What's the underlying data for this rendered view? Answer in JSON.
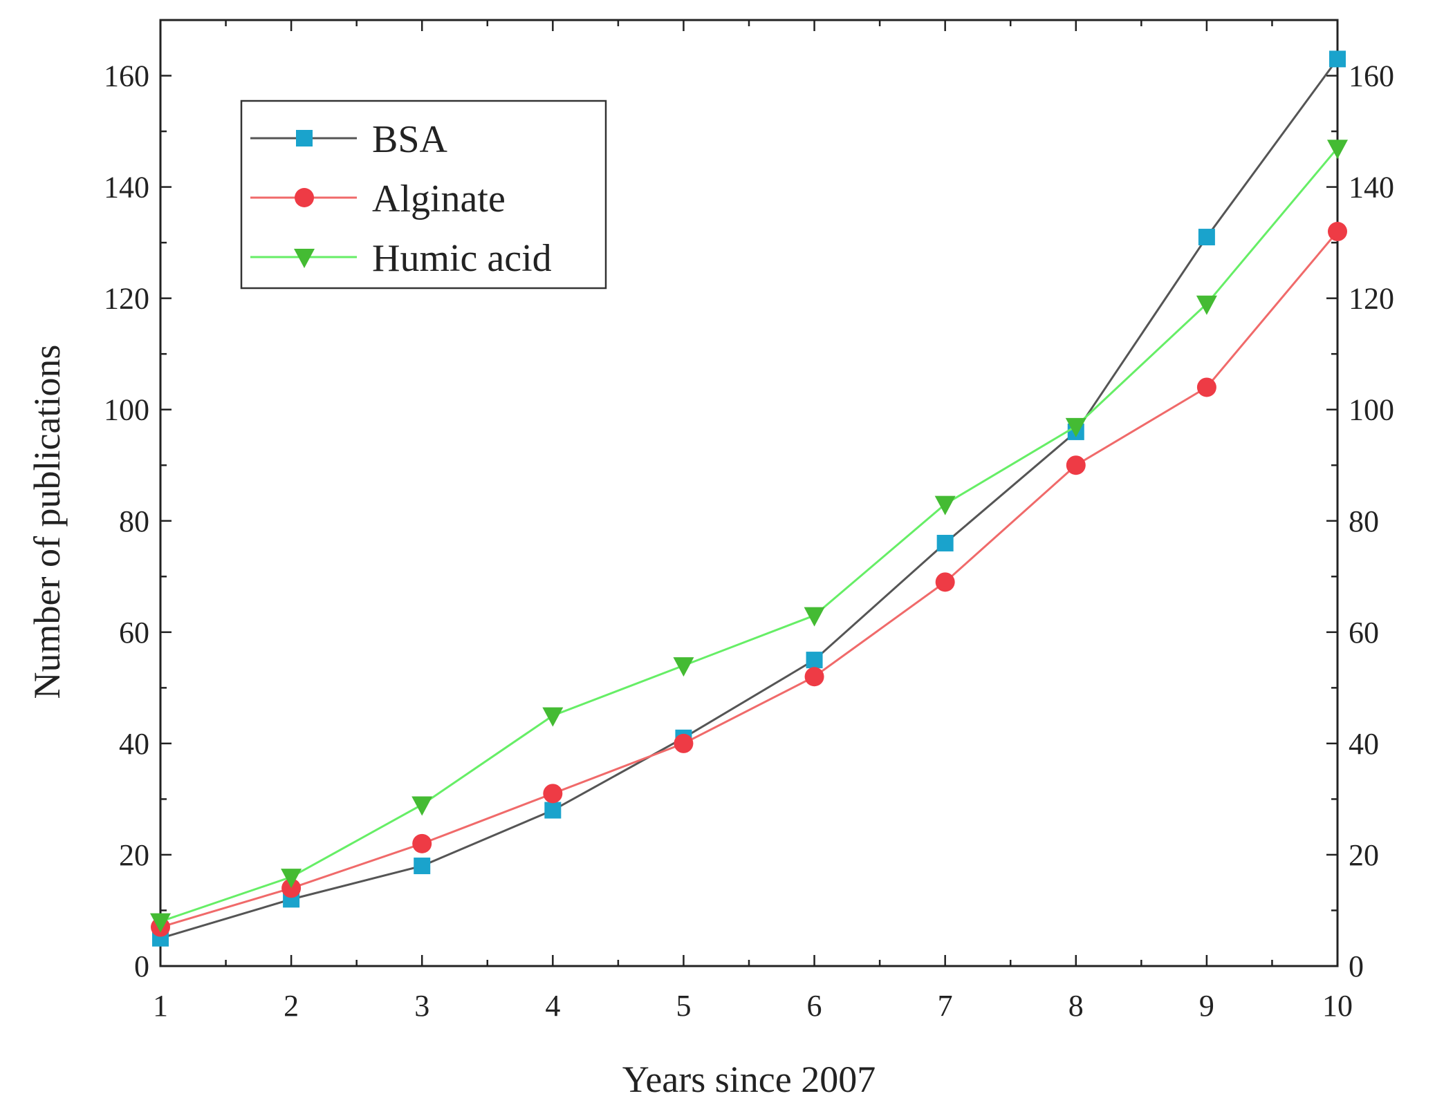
{
  "chart_data": {
    "type": "line",
    "xlabel": "Years since 2007",
    "ylabel": "Number of publications",
    "x": [
      1,
      2,
      3,
      4,
      5,
      6,
      7,
      8,
      9,
      10
    ],
    "xlim": [
      1,
      10
    ],
    "ylim": [
      0,
      170
    ],
    "xticks": [
      "1",
      "2",
      "3",
      "4",
      "5",
      "6",
      "7",
      "8",
      "9",
      "10"
    ],
    "yticks": [
      "0",
      "20",
      "40",
      "60",
      "80",
      "100",
      "120",
      "140",
      "160"
    ],
    "right_axis_mirrors_left": true,
    "grid": false,
    "legend_position": "top-left",
    "series": [
      {
        "name": "BSA",
        "marker": "square",
        "line_color": "#555555",
        "marker_color": "#1aa3cc",
        "values": [
          5,
          12,
          18,
          28,
          41,
          55,
          76,
          96,
          131,
          163
        ]
      },
      {
        "name": "Alginate",
        "marker": "circle",
        "line_color": "#f06a6a",
        "marker_color": "#ee3b45",
        "values": [
          7,
          14,
          22,
          31,
          40,
          52,
          69,
          90,
          104,
          132
        ]
      },
      {
        "name": "Humic acid",
        "marker": "triangle-down",
        "line_color": "#66ee66",
        "marker_color": "#44bb33",
        "values": [
          8,
          16,
          29,
          45,
          54,
          63,
          83,
          97,
          119,
          147
        ]
      }
    ]
  }
}
